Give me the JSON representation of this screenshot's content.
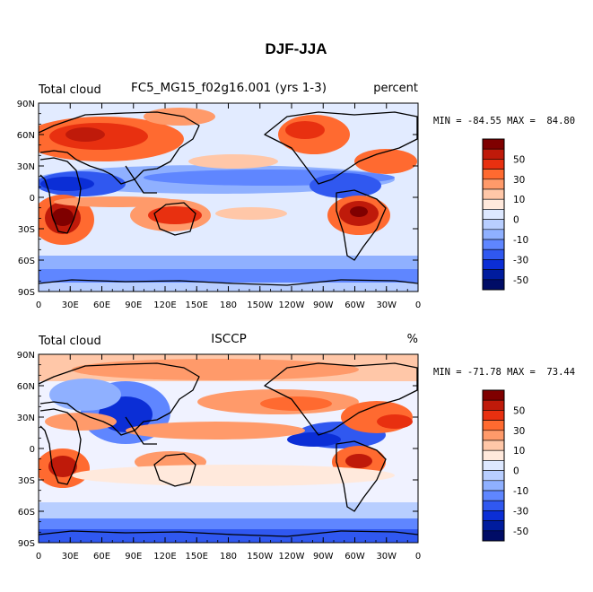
{
  "figure_title": "DJF-JJA",
  "chart_data": [
    {
      "type": "heatmap",
      "panel": "top",
      "left_label": "Total cloud",
      "center_label": "FC5_MG15_f02g16.001 (yrs 1-3)",
      "right_label": "percent",
      "stats": "MIN = -84.55 MAX =  84.80",
      "min": -84.55,
      "max": 84.8,
      "lat_ticks": [
        "90N",
        "60N",
        "30N",
        "0",
        "30S",
        "60S",
        "90S"
      ],
      "lon_ticks": [
        "0",
        "30E",
        "60E",
        "90E",
        "120E",
        "150E",
        "180",
        "150W",
        "120W",
        "90W",
        "60W",
        "30W",
        "0"
      ],
      "lat_range": [
        -90,
        90
      ],
      "lon_range": [
        0,
        360
      ]
    },
    {
      "type": "heatmap",
      "panel": "bottom",
      "left_label": "Total cloud",
      "center_label": "ISCCP",
      "right_label": "%",
      "stats": "MIN = -71.78 MAX =  73.44",
      "min": -71.78,
      "max": 73.44,
      "lat_ticks": [
        "90N",
        "60N",
        "30N",
        "0",
        "30S",
        "60S",
        "90S"
      ],
      "lon_ticks": [
        "0",
        "30E",
        "60E",
        "90E",
        "120E",
        "150E",
        "180",
        "150W",
        "120W",
        "90W",
        "60W",
        "30W",
        "0"
      ],
      "lat_range": [
        -90,
        90
      ],
      "lon_range": [
        0,
        360
      ]
    }
  ],
  "colorbar": {
    "labels": [
      "50",
      "30",
      "10",
      "0",
      "-10",
      "-30",
      "-50"
    ],
    "colors": [
      "#7f0000",
      "#bf1a0a",
      "#e83010",
      "#ff6a30",
      "#ff9a6a",
      "#ffc7a8",
      "#ffe9dc",
      "#dde8ff",
      "#b8ceff",
      "#8fb0ff",
      "#5f86ff",
      "#3058f0",
      "#0b2ed6",
      "#001c9e",
      "#000c66"
    ]
  },
  "colors": {
    "neutral": "#f3f3ff",
    "coast": "#000000"
  }
}
